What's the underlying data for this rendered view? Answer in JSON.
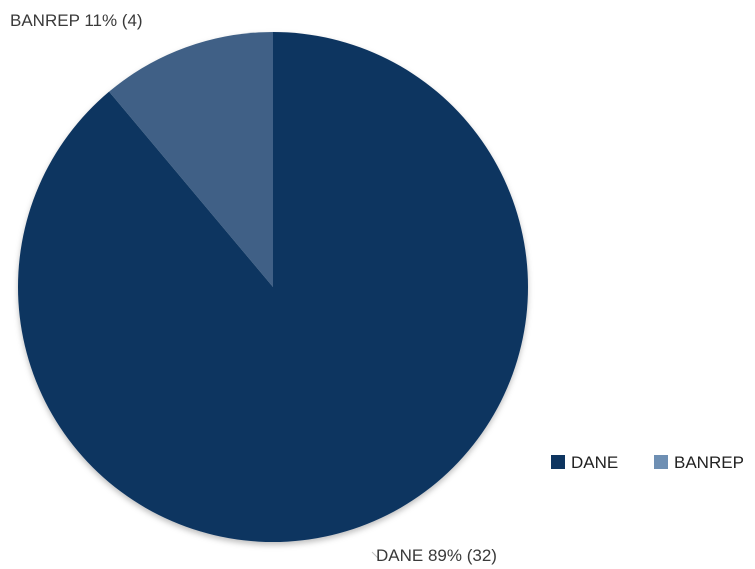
{
  "chart_data": {
    "type": "pie",
    "title": "",
    "slices": [
      {
        "name": "DANE",
        "value": 32,
        "percent": 89,
        "label": "DANE 89% (32)",
        "color": "#0e3560"
      },
      {
        "name": "BANREP",
        "value": 4,
        "percent": 11,
        "label": "BANREP 11% (4)",
        "color": "#3f6186"
      }
    ],
    "legend": {
      "position": "right",
      "items": [
        {
          "name": "DANE",
          "color": "#0e3560"
        },
        {
          "name": "BANREP",
          "color": "#6e8fb3"
        }
      ]
    }
  }
}
